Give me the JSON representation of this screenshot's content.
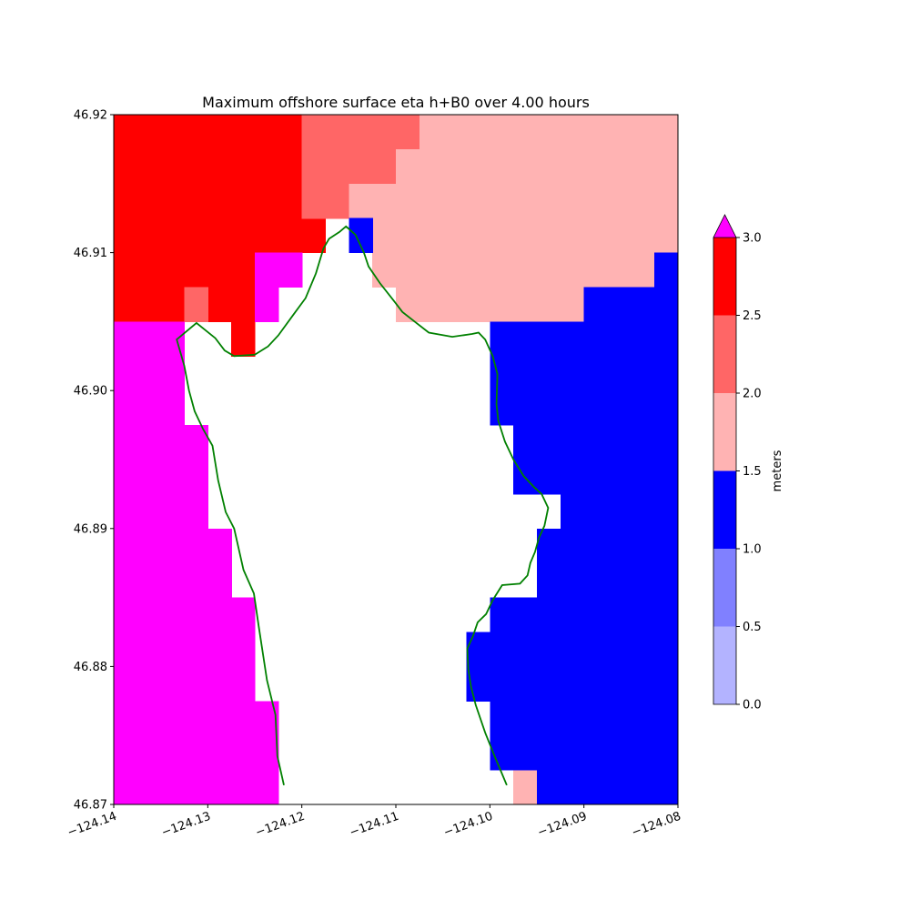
{
  "chart_data": {
    "type": "heatmap",
    "title": "Maximum offshore surface eta h+B0 over 4.00 hours",
    "xlim": [
      -124.14,
      -124.08
    ],
    "ylim": [
      46.87,
      46.92
    ],
    "x_ticks": [
      -124.14,
      -124.13,
      -124.12,
      -124.11,
      -124.1,
      -124.09,
      -124.08
    ],
    "x_tick_labels": [
      "−124.14",
      "−124.13",
      "−124.12",
      "−124.11",
      "−124.10",
      "−124.09",
      "−124.08"
    ],
    "y_ticks": [
      46.87,
      46.88,
      46.89,
      46.9,
      46.91,
      46.92
    ],
    "y_tick_labels": [
      "46.87",
      "46.88",
      "46.89",
      "46.90",
      "46.91",
      "46.92"
    ],
    "grid": false,
    "cell_size": {
      "dx": 0.0025,
      "dy": 0.0025
    },
    "colorbar": {
      "label": "meters",
      "levels": [
        0.0,
        0.5,
        1.0,
        1.5,
        2.0,
        2.5,
        3.0
      ],
      "tick_labels": [
        "0.0",
        "0.5",
        "1.0",
        "1.5",
        "2.0",
        "2.5",
        "3.0"
      ],
      "colors": [
        "#b3b3ff",
        "#8080ff",
        "#0000ff",
        "#ffb3b3",
        "#ff6666",
        "#ff0000"
      ],
      "over_color": "#ff00ff",
      "extend": "max"
    },
    "level_colors": {
      "1.0-1.5": "#0000ff",
      "1.5-2.0": "#ffb3b3",
      "2.0-2.5": "#ff6666",
      "2.5-3.0": "#ff0000",
      ">3.0": "#ff00ff"
    },
    "regions": [
      {
        "level": "2.5-3.0",
        "lon": [
          -124.14,
          -124.12
        ],
        "lat": [
          46.91,
          46.92
        ]
      },
      {
        "level": "2.5-3.0",
        "lon": [
          -124.12,
          -124.1175
        ],
        "lat": [
          46.91,
          46.9125
        ]
      },
      {
        "level": "2.5-3.0",
        "lon": [
          -124.14,
          -124.125
        ],
        "lat": [
          46.9075,
          46.91
        ]
      },
      {
        "level": "2.5-3.0",
        "lon": [
          -124.14,
          -124.1325
        ],
        "lat": [
          46.905,
          46.9075
        ]
      },
      {
        "level": "2.5-3.0",
        "lon": [
          -124.13,
          -124.125
        ],
        "lat": [
          46.905,
          46.9075
        ]
      },
      {
        "level": "2.5-3.0",
        "lon": [
          -124.1275,
          -124.125
        ],
        "lat": [
          46.9025,
          46.905
        ]
      },
      {
        "level": "2.0-2.5",
        "lon": [
          -124.1325,
          -124.13
        ],
        "lat": [
          46.905,
          46.9075
        ]
      },
      {
        "level": "2.0-2.5",
        "lon": [
          -124.12,
          -124.1075
        ],
        "lat": [
          46.9175,
          46.92
        ]
      },
      {
        "level": "2.0-2.5",
        "lon": [
          -124.12,
          -124.11
        ],
        "lat": [
          46.915,
          46.9175
        ]
      },
      {
        "level": "2.0-2.5",
        "lon": [
          -124.12,
          -124.115
        ],
        "lat": [
          46.9125,
          46.915
        ]
      },
      {
        "level": "1.5-2.0",
        "lon": [
          -124.1075,
          -124.08
        ],
        "lat": [
          46.9175,
          46.92
        ]
      },
      {
        "level": "1.5-2.0",
        "lon": [
          -124.11,
          -124.08
        ],
        "lat": [
          46.915,
          46.9175
        ]
      },
      {
        "level": "1.5-2.0",
        "lon": [
          -124.115,
          -124.08
        ],
        "lat": [
          46.9125,
          46.915
        ]
      },
      {
        "level": "1.5-2.0",
        "lon": [
          -124.1125,
          -124.08
        ],
        "lat": [
          46.91,
          46.9125
        ]
      },
      {
        "level": "1.5-2.0",
        "lon": [
          -124.1125,
          -124.0825
        ],
        "lat": [
          46.9075,
          46.91
        ]
      },
      {
        "level": "1.5-2.0",
        "lon": [
          -124.11,
          -124.09
        ],
        "lat": [
          46.905,
          46.9075
        ]
      },
      {
        "level": "1.5-2.0",
        "lon": [
          -124.0975,
          -124.095
        ],
        "lat": [
          46.87,
          46.8725
        ]
      },
      {
        "level": "1.0-1.5",
        "lon": [
          -124.115,
          -124.1125
        ],
        "lat": [
          46.91,
          46.9125
        ]
      },
      {
        "level": "1.0-1.5",
        "lon": [
          -124.0825,
          -124.08
        ],
        "lat": [
          46.9075,
          46.91
        ]
      },
      {
        "level": "1.0-1.5",
        "lon": [
          -124.09,
          -124.08
        ],
        "lat": [
          46.905,
          46.9075
        ]
      },
      {
        "level": "1.0-1.5",
        "lon": [
          -124.1,
          -124.08
        ],
        "lat": [
          46.8975,
          46.905
        ]
      },
      {
        "level": "1.0-1.5",
        "lon": [
          -124.0975,
          -124.08
        ],
        "lat": [
          46.8925,
          46.8975
        ]
      },
      {
        "level": "1.0-1.5",
        "lon": [
          -124.0925,
          -124.08
        ],
        "lat": [
          46.89,
          46.8925
        ]
      },
      {
        "level": "1.0-1.5",
        "lon": [
          -124.095,
          -124.08
        ],
        "lat": [
          46.885,
          46.89
        ]
      },
      {
        "level": "1.0-1.5",
        "lon": [
          -124.1,
          -124.08
        ],
        "lat": [
          46.8825,
          46.885
        ]
      },
      {
        "level": "1.0-1.5",
        "lon": [
          -124.1025,
          -124.08
        ],
        "lat": [
          46.8775,
          46.8825
        ]
      },
      {
        "level": "1.0-1.5",
        "lon": [
          -124.1,
          -124.08
        ],
        "lat": [
          46.8725,
          46.8775
        ]
      },
      {
        "level": "1.0-1.5",
        "lon": [
          -124.095,
          -124.08
        ],
        "lat": [
          46.87,
          46.8725
        ]
      },
      {
        "level": ">3.0",
        "lon": [
          -124.125,
          -124.12
        ],
        "lat": [
          46.9075,
          46.91
        ]
      },
      {
        "level": ">3.0",
        "lon": [
          -124.125,
          -124.1225
        ],
        "lat": [
          46.905,
          46.9075
        ]
      },
      {
        "level": ">3.0",
        "lon": [
          -124.14,
          -124.1325
        ],
        "lat": [
          46.8975,
          46.905
        ]
      },
      {
        "level": ">3.0",
        "lon": [
          -124.14,
          -124.13
        ],
        "lat": [
          46.89,
          46.8975
        ]
      },
      {
        "level": ">3.0",
        "lon": [
          -124.14,
          -124.1275
        ],
        "lat": [
          46.885,
          46.89
        ]
      },
      {
        "level": ">3.0",
        "lon": [
          -124.14,
          -124.125
        ],
        "lat": [
          46.8775,
          46.885
        ]
      },
      {
        "level": ">3.0",
        "lon": [
          -124.14,
          -124.1225
        ],
        "lat": [
          46.87,
          46.8775
        ]
      }
    ],
    "shoreline": [
      [
        -124.1219,
        46.8714
      ],
      [
        -124.1226,
        46.8735
      ],
      [
        -124.1228,
        46.8765
      ],
      [
        -124.1237,
        46.879
      ],
      [
        -124.1246,
        46.883
      ],
      [
        -124.1251,
        46.8853
      ],
      [
        -124.1262,
        46.887
      ],
      [
        -124.1272,
        46.89
      ],
      [
        -124.1281,
        46.8912
      ],
      [
        -124.1289,
        46.8935
      ],
      [
        -124.1295,
        46.896
      ],
      [
        -124.1305,
        46.8972
      ],
      [
        -124.1314,
        46.8985
      ],
      [
        -124.132,
        46.9
      ],
      [
        -124.1325,
        46.9018
      ],
      [
        -124.1333,
        46.9037
      ],
      [
        -124.1312,
        46.9049
      ],
      [
        -124.1292,
        46.9038
      ],
      [
        -124.1282,
        46.9029
      ],
      [
        -124.1272,
        46.9025
      ],
      [
        -124.125,
        46.9026
      ],
      [
        -124.1236,
        46.9032
      ],
      [
        -124.1225,
        46.904
      ],
      [
        -124.1209,
        46.9055
      ],
      [
        -124.1196,
        46.9067
      ],
      [
        -124.1185,
        46.9085
      ],
      [
        -124.1177,
        46.9103
      ],
      [
        -124.1171,
        46.911
      ],
      [
        -124.116,
        46.9115
      ],
      [
        -124.1153,
        46.9119
      ],
      [
        -124.1143,
        46.9113
      ],
      [
        -124.1134,
        46.91
      ],
      [
        -124.1129,
        46.909
      ],
      [
        -124.1117,
        46.9078
      ],
      [
        -124.1102,
        46.9065
      ],
      [
        -124.1093,
        46.9057
      ],
      [
        -124.108,
        46.905
      ],
      [
        -124.1065,
        46.9042
      ],
      [
        -124.104,
        46.9039
      ],
      [
        -124.1019,
        46.9041
      ],
      [
        -124.1012,
        46.9042
      ],
      [
        -124.1005,
        46.9037
      ],
      [
        -124.0997,
        46.9025
      ],
      [
        -124.0992,
        46.9012
      ],
      [
        -124.0993,
        46.899
      ],
      [
        -124.0991,
        46.8978
      ],
      [
        -124.0984,
        46.8963
      ],
      [
        -124.0975,
        46.895
      ],
      [
        -124.0964,
        46.8938
      ],
      [
        -124.0953,
        46.893
      ],
      [
        -124.0945,
        46.8925
      ],
      [
        -124.0938,
        46.8915
      ],
      [
        -124.0942,
        46.8902
      ],
      [
        -124.0948,
        46.8893
      ],
      [
        -124.0952,
        46.8883
      ],
      [
        -124.0957,
        46.8875
      ],
      [
        -124.096,
        46.8866
      ],
      [
        -124.0968,
        46.886
      ],
      [
        -124.0987,
        46.8859
      ],
      [
        -124.0997,
        46.8848
      ],
      [
        -124.1004,
        46.8838
      ],
      [
        -124.1013,
        46.8832
      ],
      [
        -124.1018,
        46.8822
      ],
      [
        -124.1024,
        46.8813
      ],
      [
        -124.1023,
        46.8798
      ],
      [
        -124.102,
        46.8785
      ],
      [
        -124.1015,
        46.8772
      ],
      [
        -124.1005,
        46.8752
      ],
      [
        -124.0995,
        46.8735
      ],
      [
        -124.0987,
        46.8722
      ],
      [
        -124.0982,
        46.8714
      ]
    ],
    "shoreline_color": "#008000"
  }
}
